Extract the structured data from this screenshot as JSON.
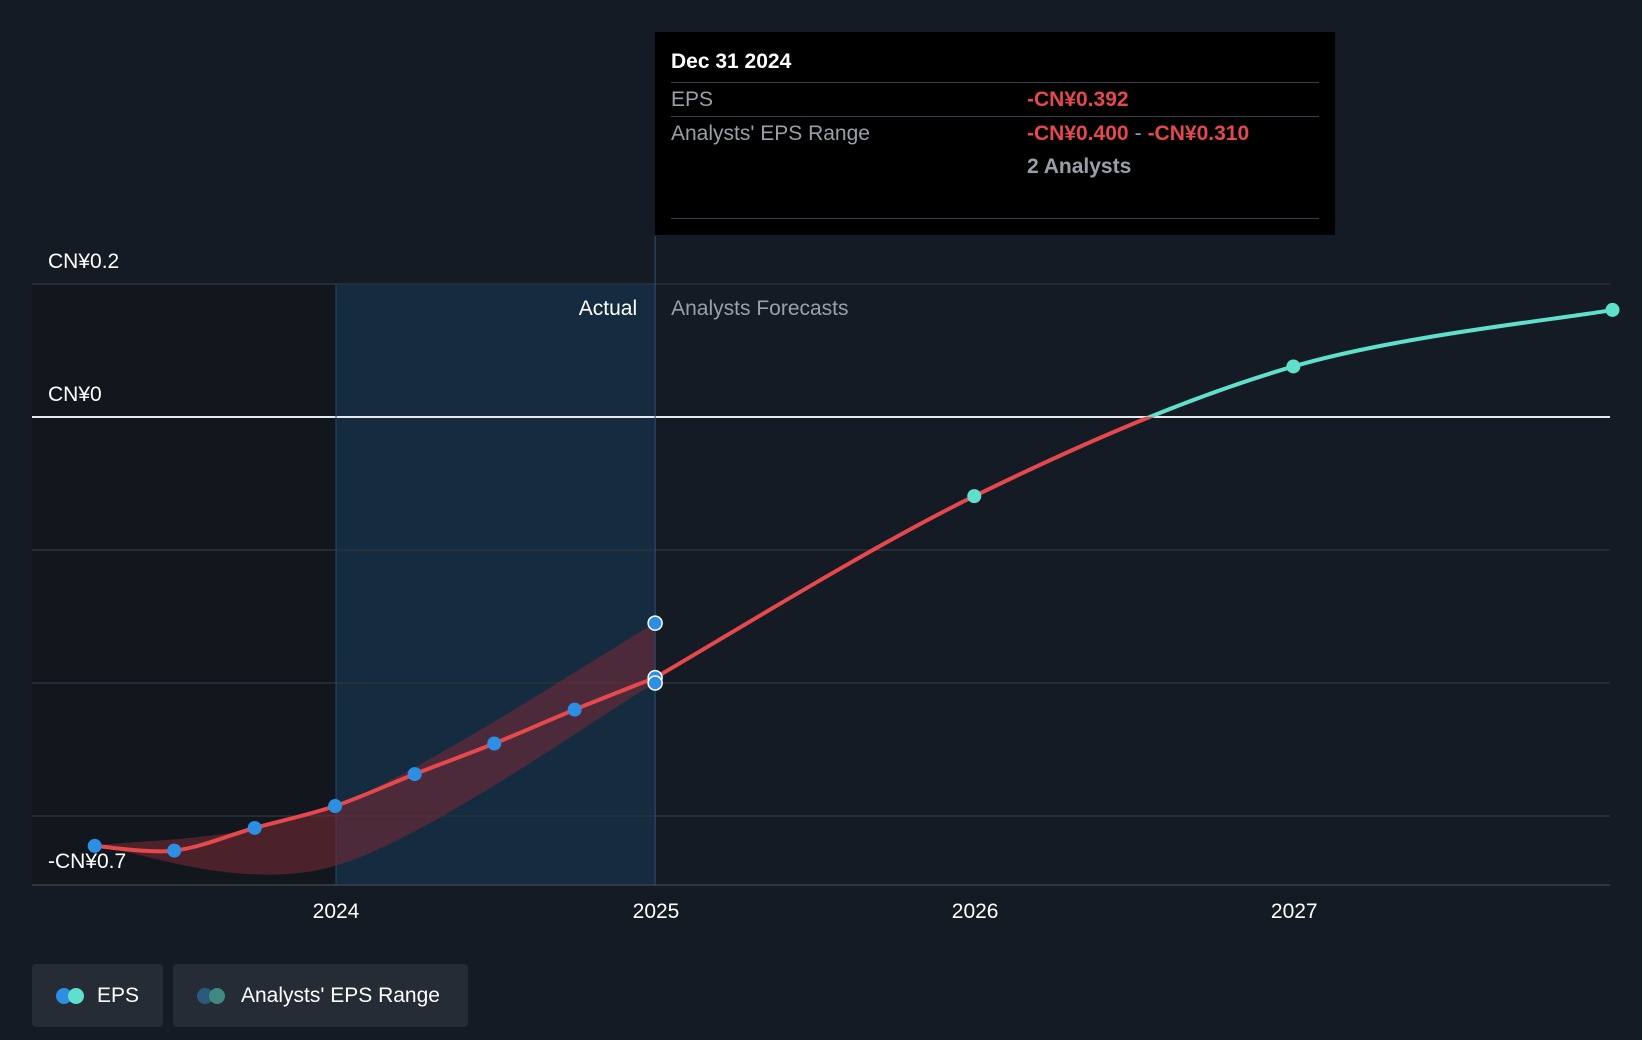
{
  "tooltip": {
    "date": "Dec 31 2024",
    "eps_label": "EPS",
    "eps_value": "-CN¥0.392",
    "range_label": "Analysts' EPS Range",
    "range_low": "-CN¥0.400",
    "range_sep": "-",
    "range_high": "-CN¥0.310",
    "analysts": "2 Analysts"
  },
  "legend": {
    "eps_label": "EPS",
    "range_label": "Analysts' EPS Range"
  },
  "colors": {
    "background": "#151b24",
    "eps_line_negative": "#e5484d",
    "eps_line_positive": "#5ee0cc",
    "actual_point": "#2d8fe3",
    "forecast_point": "#5ee0cc",
    "range_band": "#7a2a35",
    "actual_region": "#16324a"
  },
  "chart_data": {
    "type": "line",
    "actual_label": "Actual",
    "forecast_label": "Analysts Forecasts",
    "y_ticks": [
      {
        "value": 0.2,
        "label": "CN¥0.2"
      },
      {
        "value": 0,
        "label": "CN¥0"
      },
      {
        "value": -0.7,
        "label": "-CN¥0.7"
      }
    ],
    "ylim": [
      -0.7,
      0.2
    ],
    "gridlines": [
      -0.6,
      -0.4,
      -0.2,
      0,
      0.2
    ],
    "x_ticks": [
      {
        "date": "2024-01-01",
        "label": "2024"
      },
      {
        "date": "2025-01-01",
        "label": "2025"
      },
      {
        "date": "2026-01-01",
        "label": "2026"
      },
      {
        "date": "2027-01-01",
        "label": "2027"
      }
    ],
    "xlim": [
      "2023-01-01",
      "2027-12-31"
    ],
    "actual_start": "2024-01-01",
    "actual_end": "2024-12-31",
    "eps_actual": [
      {
        "date": "2023-03-31",
        "value": -0.645
      },
      {
        "date": "2023-06-30",
        "value": -0.652
      },
      {
        "date": "2023-09-30",
        "value": -0.618
      },
      {
        "date": "2023-12-31",
        "value": -0.585
      },
      {
        "date": "2024-03-31",
        "value": -0.537
      },
      {
        "date": "2024-06-30",
        "value": -0.491
      },
      {
        "date": "2024-09-30",
        "value": -0.44
      },
      {
        "date": "2024-12-31",
        "value": -0.392
      }
    ],
    "eps_forecast": [
      {
        "date": "2024-12-31",
        "value": -0.392
      },
      {
        "date": "2025-12-31",
        "value": -0.119
      },
      {
        "date": "2026-12-31",
        "value": 0.076
      },
      {
        "date": "2027-12-31",
        "value": 0.161
      }
    ],
    "analyst_range": [
      {
        "date": "2023-03-31",
        "low": -0.645,
        "high": -0.645
      },
      {
        "date": "2023-12-31",
        "low": -0.675,
        "high": -0.585
      },
      {
        "date": "2024-12-31",
        "low": -0.4,
        "high": -0.31
      }
    ]
  }
}
